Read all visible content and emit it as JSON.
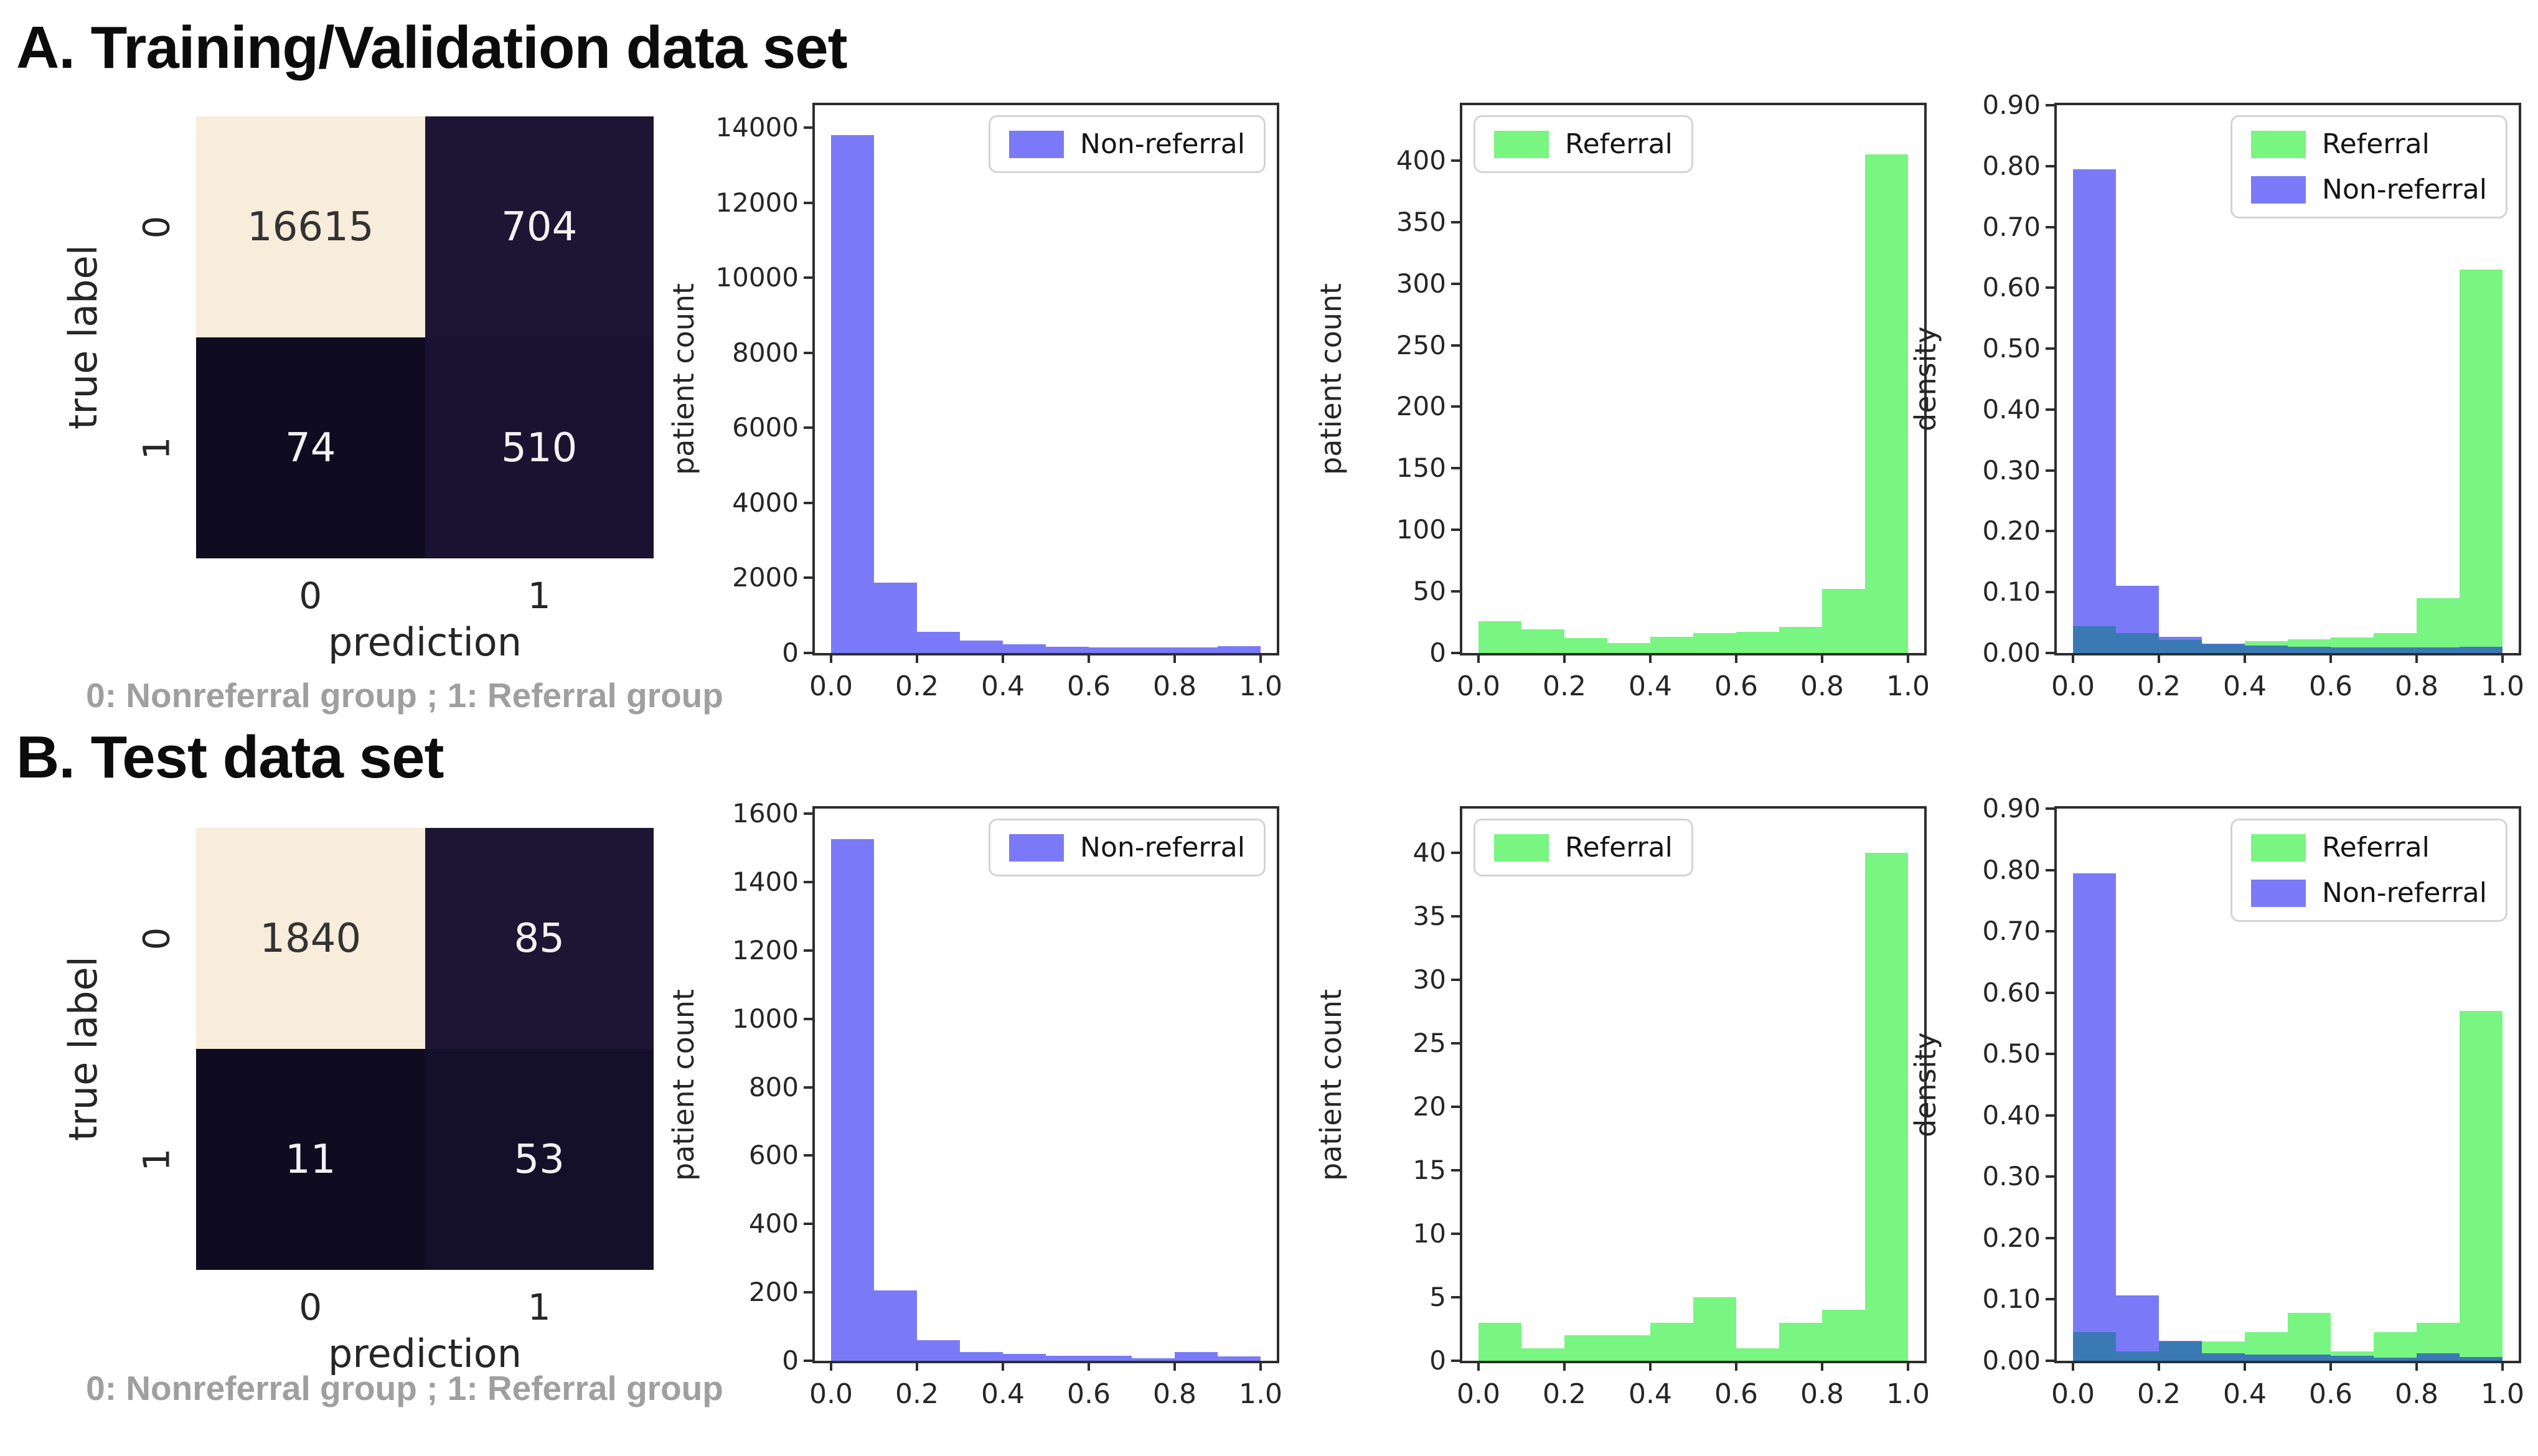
{
  "sections": [
    {
      "title": "A. Training/Validation data set",
      "caption": "0: Nonreferral group ; 1: Referral group"
    },
    {
      "title": "B. Test data set",
      "caption": "0: Nonreferral group ; 1: Referral group"
    }
  ],
  "colors": {
    "non_referral": "#7a7af8",
    "referral": "#79f582",
    "overlap": "#3b79b5",
    "axis": "#2e2e2e",
    "caption_gray": "#9f9f9f",
    "cm_light": "#f8ecdb"
  },
  "chart_data": [
    {
      "id": "cm-train",
      "type": "heatmap",
      "xlabel": "prediction",
      "ylabel": "true label",
      "x_categories": [
        "0",
        "1"
      ],
      "y_categories": [
        "0",
        "1"
      ],
      "values": [
        [
          16615,
          704
        ],
        [
          74,
          510
        ]
      ],
      "cell_colors": [
        [
          "#f8ecdb",
          "#1c1533"
        ],
        [
          "#0f0b20",
          "#191231"
        ]
      ],
      "cell_text_colors": [
        [
          "#333333",
          "#f2f2f2"
        ],
        [
          "#f2f2f2",
          "#f2f2f2"
        ]
      ]
    },
    {
      "id": "hist-train-nonreferral",
      "type": "bar",
      "ylabel": "patient count",
      "color": "#7a7af8",
      "bins": {
        "start": 0,
        "width": 0.1
      },
      "values": [
        13800,
        1870,
        560,
        330,
        230,
        160,
        155,
        150,
        150,
        180
      ],
      "ylim": [
        0,
        14600
      ],
      "yticks": [
        [
          0,
          "0"
        ],
        [
          2000,
          "2000"
        ],
        [
          4000,
          "4000"
        ],
        [
          6000,
          "6000"
        ],
        [
          8000,
          "8000"
        ],
        [
          10000,
          "10000"
        ],
        [
          12000,
          "12000"
        ],
        [
          14000,
          "14000"
        ]
      ],
      "xticks": [
        [
          0,
          "0.0"
        ],
        [
          0.2,
          "0.2"
        ],
        [
          0.4,
          "0.4"
        ],
        [
          0.6,
          "0.6"
        ],
        [
          0.8,
          "0.8"
        ],
        [
          1.0,
          "1.0"
        ]
      ],
      "legend": {
        "position": "top-right",
        "entries": [
          {
            "label": "Non-referral",
            "color": "#7a7af8"
          }
        ]
      }
    },
    {
      "id": "hist-train-referral",
      "type": "bar",
      "ylabel": "patient count",
      "color": "#79f582",
      "bins": {
        "start": 0,
        "width": 0.1
      },
      "values": [
        26,
        19,
        12,
        8,
        13,
        16,
        17,
        21,
        52,
        405
      ],
      "ylim": [
        0,
        445
      ],
      "yticks": [
        [
          0,
          "0"
        ],
        [
          50,
          "50"
        ],
        [
          100,
          "100"
        ],
        [
          150,
          "150"
        ],
        [
          200,
          "200"
        ],
        [
          250,
          "250"
        ],
        [
          300,
          "300"
        ],
        [
          350,
          "350"
        ],
        [
          400,
          "400"
        ]
      ],
      "xticks": [
        [
          0,
          "0.0"
        ],
        [
          0.2,
          "0.2"
        ],
        [
          0.4,
          "0.4"
        ],
        [
          0.6,
          "0.6"
        ],
        [
          0.8,
          "0.8"
        ],
        [
          1.0,
          "1.0"
        ]
      ],
      "legend": {
        "position": "top-left",
        "entries": [
          {
            "label": "Referral",
            "color": "#79f582"
          }
        ]
      }
    },
    {
      "id": "density-train",
      "type": "bar-overlay",
      "ylabel": "density",
      "overlap_color": "#3b79b5",
      "bins": {
        "start": 0,
        "width": 0.1
      },
      "series": [
        {
          "name": "Referral",
          "color": "#79f582",
          "values": [
            0.044,
            0.033,
            0.021,
            0.014,
            0.019,
            0.023,
            0.026,
            0.033,
            0.09,
            0.63
          ]
        },
        {
          "name": "Non-referral",
          "color": "#7a7af8",
          "values": [
            0.795,
            0.11,
            0.027,
            0.015,
            0.012,
            0.01,
            0.009,
            0.009,
            0.009,
            0.01
          ]
        }
      ],
      "ylim": [
        0,
        0.9
      ],
      "yticks": [
        [
          0,
          "0.00"
        ],
        [
          0.1,
          "0.10"
        ],
        [
          0.2,
          "0.20"
        ],
        [
          0.3,
          "0.30"
        ],
        [
          0.4,
          "0.40"
        ],
        [
          0.5,
          "0.50"
        ],
        [
          0.6,
          "0.60"
        ],
        [
          0.7,
          "0.70"
        ],
        [
          0.8,
          "0.80"
        ],
        [
          0.9,
          "0.90"
        ]
      ],
      "xticks": [
        [
          0,
          "0.0"
        ],
        [
          0.2,
          "0.2"
        ],
        [
          0.4,
          "0.4"
        ],
        [
          0.6,
          "0.6"
        ],
        [
          0.8,
          "0.8"
        ],
        [
          1.0,
          "1.0"
        ]
      ],
      "legend": {
        "position": "top-right",
        "entries": [
          {
            "label": "Referral",
            "color": "#79f582"
          },
          {
            "label": "Non-referral",
            "color": "#7a7af8"
          }
        ]
      }
    },
    {
      "id": "cm-test",
      "type": "heatmap",
      "xlabel": "prediction",
      "ylabel": "true label",
      "x_categories": [
        "0",
        "1"
      ],
      "y_categories": [
        "0",
        "1"
      ],
      "values": [
        [
          1840,
          85
        ],
        [
          11,
          53
        ]
      ],
      "cell_colors": [
        [
          "#f8ecdb",
          "#1c1533"
        ],
        [
          "#0f0b20",
          "#14102a"
        ]
      ],
      "cell_text_colors": [
        [
          "#333333",
          "#f2f2f2"
        ],
        [
          "#f2f2f2",
          "#f2f2f2"
        ]
      ]
    },
    {
      "id": "hist-test-nonreferral",
      "type": "bar",
      "ylabel": "patient count",
      "color": "#7a7af8",
      "bins": {
        "start": 0,
        "width": 0.1
      },
      "values": [
        1525,
        205,
        60,
        25,
        20,
        15,
        15,
        8,
        25,
        12
      ],
      "ylim": [
        0,
        1615
      ],
      "yticks": [
        [
          0,
          "0"
        ],
        [
          200,
          "200"
        ],
        [
          400,
          "400"
        ],
        [
          600,
          "600"
        ],
        [
          800,
          "800"
        ],
        [
          1000,
          "1000"
        ],
        [
          1200,
          "1200"
        ],
        [
          1400,
          "1400"
        ],
        [
          1600,
          "1600"
        ]
      ],
      "xticks": [
        [
          0,
          "0.0"
        ],
        [
          0.2,
          "0.2"
        ],
        [
          0.4,
          "0.4"
        ],
        [
          0.6,
          "0.6"
        ],
        [
          0.8,
          "0.8"
        ],
        [
          1.0,
          "1.0"
        ]
      ],
      "legend": {
        "position": "top-right",
        "entries": [
          {
            "label": "Non-referral",
            "color": "#7a7af8"
          }
        ]
      }
    },
    {
      "id": "hist-test-referral",
      "type": "bar",
      "ylabel": "patient count",
      "color": "#79f582",
      "bins": {
        "start": 0,
        "width": 0.1
      },
      "values": [
        3,
        1,
        2,
        2,
        3,
        5,
        1,
        3,
        4,
        40
      ],
      "ylim": [
        0,
        43.5
      ],
      "yticks": [
        [
          0,
          "0"
        ],
        [
          5,
          "5"
        ],
        [
          10,
          "10"
        ],
        [
          15,
          "15"
        ],
        [
          20,
          "20"
        ],
        [
          25,
          "25"
        ],
        [
          30,
          "30"
        ],
        [
          35,
          "35"
        ],
        [
          40,
          "40"
        ]
      ],
      "xticks": [
        [
          0,
          "0.0"
        ],
        [
          0.2,
          "0.2"
        ],
        [
          0.4,
          "0.4"
        ],
        [
          0.6,
          "0.6"
        ],
        [
          0.8,
          "0.8"
        ],
        [
          1.0,
          "1.0"
        ]
      ],
      "legend": {
        "position": "top-left",
        "entries": [
          {
            "label": "Referral",
            "color": "#79f582"
          }
        ]
      }
    },
    {
      "id": "density-test",
      "type": "bar-overlay",
      "ylabel": "density",
      "overlap_color": "#3b79b5",
      "bins": {
        "start": 0,
        "width": 0.1
      },
      "series": [
        {
          "name": "Referral",
          "color": "#79f582",
          "values": [
            0.047,
            0.015,
            0.031,
            0.031,
            0.047,
            0.078,
            0.015,
            0.047,
            0.062,
            0.57
          ]
        },
        {
          "name": "Non-referral",
          "color": "#7a7af8",
          "values": [
            0.795,
            0.107,
            0.032,
            0.012,
            0.01,
            0.01,
            0.008,
            0.005,
            0.012,
            0.006
          ]
        }
      ],
      "ylim": [
        0,
        0.9
      ],
      "yticks": [
        [
          0,
          "0.00"
        ],
        [
          0.1,
          "0.10"
        ],
        [
          0.2,
          "0.20"
        ],
        [
          0.3,
          "0.30"
        ],
        [
          0.4,
          "0.40"
        ],
        [
          0.5,
          "0.50"
        ],
        [
          0.6,
          "0.60"
        ],
        [
          0.7,
          "0.70"
        ],
        [
          0.8,
          "0.80"
        ],
        [
          0.9,
          "0.90"
        ]
      ],
      "xticks": [
        [
          0,
          "0.0"
        ],
        [
          0.2,
          "0.2"
        ],
        [
          0.4,
          "0.4"
        ],
        [
          0.6,
          "0.6"
        ],
        [
          0.8,
          "0.8"
        ],
        [
          1.0,
          "1.0"
        ]
      ],
      "legend": {
        "position": "top-right",
        "entries": [
          {
            "label": "Referral",
            "color": "#79f582"
          },
          {
            "label": "Non-referral",
            "color": "#7a7af8"
          }
        ]
      }
    }
  ]
}
